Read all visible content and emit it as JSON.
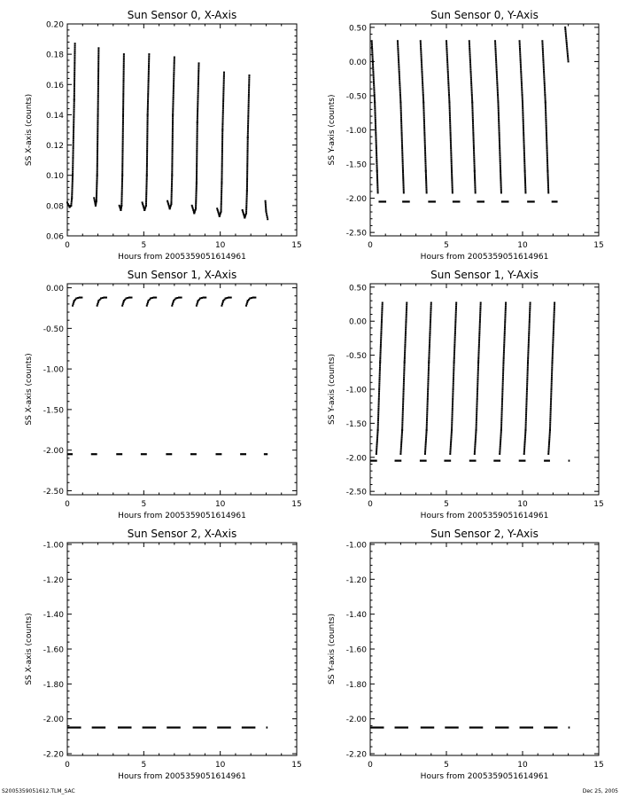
{
  "footer": {
    "left": "S2005359051612.TLM_SAC",
    "right": "Dec 25, 2005"
  },
  "chart_data": [
    {
      "type": "scatter",
      "title": "Sun Sensor 0, X-Axis",
      "xlabel": "Hours from 2005359051614961",
      "ylabel": "SS X-axis (counts)",
      "xlim": [
        0,
        15
      ],
      "ylim": [
        0.06,
        0.2
      ],
      "x_ticks": [
        0,
        5,
        10,
        15
      ],
      "x_tick_labels": [
        "0",
        "5",
        "10",
        "15"
      ],
      "y_ticks": [
        0.06,
        0.08,
        0.1,
        0.12,
        0.14,
        0.16,
        0.18,
        0.2
      ],
      "y_tick_labels": [
        "0.06",
        "0.08",
        "0.10",
        "0.12",
        "0.14",
        "0.16",
        "0.18",
        "0.20"
      ],
      "grid": false,
      "series": [
        {
          "kind": "orbit_segments",
          "segments": [
            {
              "x": [
                0.0,
                0.15,
                0.25,
                0.3,
                0.35,
                0.45,
                0.5
              ],
              "y": [
                0.082,
                0.079,
                0.08,
                0.085,
                0.1,
                0.15,
                0.187
              ]
            },
            {
              "x": [
                1.75,
                1.85,
                1.9,
                1.95,
                2.0,
                2.05
              ],
              "y": [
                0.085,
                0.08,
                0.083,
                0.1,
                0.14,
                0.184
              ]
            },
            {
              "x": [
                3.4,
                3.5,
                3.55,
                3.6,
                3.65,
                3.7
              ],
              "y": [
                0.08,
                0.077,
                0.08,
                0.1,
                0.14,
                0.18
              ]
            },
            {
              "x": [
                4.9,
                5.05,
                5.15,
                5.2,
                5.25,
                5.35
              ],
              "y": [
                0.082,
                0.077,
                0.08,
                0.1,
                0.14,
                0.18
              ]
            },
            {
              "x": [
                6.55,
                6.7,
                6.8,
                6.85,
                6.9,
                7.0
              ],
              "y": [
                0.083,
                0.078,
                0.081,
                0.1,
                0.14,
                0.178
              ]
            },
            {
              "x": [
                8.15,
                8.3,
                8.4,
                8.45,
                8.5,
                8.6
              ],
              "y": [
                0.08,
                0.075,
                0.078,
                0.095,
                0.135,
                0.174
              ]
            },
            {
              "x": [
                9.8,
                9.95,
                10.05,
                10.1,
                10.15,
                10.25
              ],
              "y": [
                0.078,
                0.073,
                0.076,
                0.095,
                0.13,
                0.168
              ]
            },
            {
              "x": [
                11.45,
                11.6,
                11.7,
                11.75,
                11.8,
                11.9
              ],
              "y": [
                0.077,
                0.072,
                0.075,
                0.09,
                0.125,
                0.166
              ]
            },
            {
              "x": [
                12.95,
                13.0,
                13.1
              ],
              "y": [
                0.083,
                0.076,
                0.071
              ]
            }
          ]
        }
      ]
    },
    {
      "type": "scatter",
      "title": "Sun Sensor 0, Y-Axis",
      "xlabel": "Hours from 2005359051614961",
      "ylabel": "SS Y-axis (counts)",
      "xlim": [
        0,
        15
      ],
      "ylim": [
        -2.55,
        0.55
      ],
      "x_ticks": [
        0,
        5,
        10,
        15
      ],
      "x_tick_labels": [
        "0",
        "5",
        "10",
        "15"
      ],
      "y_ticks": [
        -2.5,
        -2.0,
        -1.5,
        -1.0,
        -0.5,
        0.0,
        0.5
      ],
      "y_tick_labels": [
        "-2.50",
        "-2.00",
        "-1.50",
        "-1.00",
        "-0.50",
        "0.00",
        "0.50"
      ],
      "grid": false,
      "series": [
        {
          "kind": "orbit_segments",
          "segments": [
            {
              "x": [
                0.1,
                0.3,
                0.45,
                0.5
              ],
              "y": [
                0.3,
                -0.6,
                -1.6,
                -1.92
              ]
            },
            {
              "x": [
                1.8,
                2.0,
                2.15,
                2.2
              ],
              "y": [
                0.3,
                -0.6,
                -1.6,
                -1.92
              ]
            },
            {
              "x": [
                3.3,
                3.5,
                3.65,
                3.7
              ],
              "y": [
                0.3,
                -0.6,
                -1.6,
                -1.92
              ]
            },
            {
              "x": [
                5.0,
                5.2,
                5.35,
                5.4
              ],
              "y": [
                0.3,
                -0.6,
                -1.6,
                -1.92
              ]
            },
            {
              "x": [
                6.5,
                6.7,
                6.85,
                6.9
              ],
              "y": [
                0.3,
                -0.6,
                -1.6,
                -1.92
              ]
            },
            {
              "x": [
                8.2,
                8.4,
                8.55,
                8.6
              ],
              "y": [
                0.3,
                -0.6,
                -1.6,
                -1.92
              ]
            },
            {
              "x": [
                9.8,
                10.0,
                10.15,
                10.2
              ],
              "y": [
                0.3,
                -0.6,
                -1.6,
                -1.92
              ]
            },
            {
              "x": [
                11.3,
                11.5,
                11.65,
                11.7
              ],
              "y": [
                0.3,
                -0.6,
                -1.6,
                -1.92
              ]
            },
            {
              "x": [
                12.8,
                13.0
              ],
              "y": [
                0.5,
                0.0
              ]
            }
          ]
        },
        {
          "kind": "flat_segments",
          "y": -2.05,
          "segments": [
            [
              0.55,
              1.05
            ],
            [
              2.1,
              2.6
            ],
            [
              3.8,
              4.3
            ],
            [
              5.4,
              5.9
            ],
            [
              7.0,
              7.5
            ],
            [
              8.6,
              9.1
            ],
            [
              10.3,
              10.8
            ],
            [
              11.9,
              12.3
            ]
          ]
        }
      ]
    },
    {
      "type": "scatter",
      "title": "Sun Sensor 1, X-Axis",
      "xlabel": "Hours from 2005359051614961",
      "ylabel": "SS X-axis (counts)",
      "xlim": [
        0,
        15
      ],
      "ylim": [
        -2.55,
        0.05
      ],
      "x_ticks": [
        0,
        5,
        10,
        15
      ],
      "x_tick_labels": [
        "0",
        "5",
        "10",
        "15"
      ],
      "y_ticks": [
        -2.5,
        -2.0,
        -1.5,
        -1.0,
        -0.5,
        0.0
      ],
      "y_tick_labels": [
        "-2.50",
        "-2.00",
        "-1.50",
        "-1.00",
        "-0.50",
        "0.00"
      ],
      "grid": false,
      "series": [
        {
          "kind": "orbit_segments",
          "segments": [
            {
              "x": [
                0.35,
                0.45,
                0.6,
                0.8,
                0.95
              ],
              "y": [
                -0.22,
                -0.16,
                -0.13,
                -0.12,
                -0.12
              ]
            },
            {
              "x": [
                1.95,
                2.05,
                2.2,
                2.4,
                2.55
              ],
              "y": [
                -0.22,
                -0.16,
                -0.13,
                -0.12,
                -0.12
              ]
            },
            {
              "x": [
                3.6,
                3.7,
                3.85,
                4.05,
                4.2
              ],
              "y": [
                -0.22,
                -0.16,
                -0.13,
                -0.12,
                -0.12
              ]
            },
            {
              "x": [
                5.2,
                5.3,
                5.45,
                5.65,
                5.8
              ],
              "y": [
                -0.22,
                -0.16,
                -0.13,
                -0.12,
                -0.12
              ]
            },
            {
              "x": [
                6.85,
                6.95,
                7.1,
                7.3,
                7.45
              ],
              "y": [
                -0.22,
                -0.16,
                -0.13,
                -0.12,
                -0.12
              ]
            },
            {
              "x": [
                8.45,
                8.55,
                8.7,
                8.9,
                9.05
              ],
              "y": [
                -0.22,
                -0.16,
                -0.13,
                -0.12,
                -0.12
              ]
            },
            {
              "x": [
                10.1,
                10.2,
                10.35,
                10.55,
                10.7
              ],
              "y": [
                -0.22,
                -0.16,
                -0.13,
                -0.12,
                -0.12
              ]
            },
            {
              "x": [
                11.7,
                11.8,
                11.95,
                12.15,
                12.3
              ],
              "y": [
                -0.22,
                -0.16,
                -0.13,
                -0.12,
                -0.12
              ]
            }
          ]
        },
        {
          "kind": "flat_segments",
          "y": -2.05,
          "segments": [
            [
              0.0,
              0.35
            ],
            [
              1.55,
              1.95
            ],
            [
              3.2,
              3.6
            ],
            [
              4.8,
              5.2
            ],
            [
              6.45,
              6.85
            ],
            [
              8.05,
              8.45
            ],
            [
              9.7,
              10.1
            ],
            [
              11.3,
              11.7
            ],
            [
              12.85,
              13.1
            ]
          ]
        }
      ]
    },
    {
      "type": "scatter",
      "title": "Sun Sensor 1, Y-Axis",
      "xlabel": "Hours from 2005359051614961",
      "ylabel": "SS Y-axis (counts)",
      "xlim": [
        0,
        15
      ],
      "ylim": [
        -2.55,
        0.55
      ],
      "x_ticks": [
        0,
        5,
        10,
        15
      ],
      "x_tick_labels": [
        "0",
        "5",
        "10",
        "15"
      ],
      "y_ticks": [
        -2.5,
        -2.0,
        -1.5,
        -1.0,
        -0.5,
        0.0,
        0.5
      ],
      "y_tick_labels": [
        "-2.50",
        "-2.00",
        "-1.50",
        "-1.00",
        "-0.50",
        "0.00",
        "0.50"
      ],
      "grid": false,
      "series": [
        {
          "kind": "orbit_segments",
          "segments": [
            {
              "x": [
                0.4,
                0.5,
                0.65,
                0.8
              ],
              "y": [
                -1.95,
                -1.6,
                -0.6,
                0.27
              ]
            },
            {
              "x": [
                2.0,
                2.1,
                2.25,
                2.4
              ],
              "y": [
                -1.95,
                -1.6,
                -0.6,
                0.27
              ]
            },
            {
              "x": [
                3.6,
                3.7,
                3.85,
                4.0
              ],
              "y": [
                -1.95,
                -1.6,
                -0.6,
                0.27
              ]
            },
            {
              "x": [
                5.25,
                5.35,
                5.5,
                5.65
              ],
              "y": [
                -1.95,
                -1.6,
                -0.6,
                0.27
              ]
            },
            {
              "x": [
                6.85,
                6.95,
                7.1,
                7.25
              ],
              "y": [
                -1.95,
                -1.6,
                -0.6,
                0.27
              ]
            },
            {
              "x": [
                8.5,
                8.6,
                8.75,
                8.9
              ],
              "y": [
                -1.95,
                -1.6,
                -0.6,
                0.27
              ]
            },
            {
              "x": [
                10.1,
                10.2,
                10.35,
                10.5
              ],
              "y": [
                -1.95,
                -1.6,
                -0.6,
                0.27
              ]
            },
            {
              "x": [
                11.7,
                11.8,
                11.95,
                12.1
              ],
              "y": [
                -1.95,
                -1.6,
                -0.6,
                0.27
              ]
            }
          ]
        },
        {
          "kind": "flat_segments",
          "y": -2.05,
          "segments": [
            [
              0.0,
              0.45
            ],
            [
              1.6,
              2.05
            ],
            [
              3.25,
              3.7
            ],
            [
              4.85,
              5.3
            ],
            [
              6.5,
              6.95
            ],
            [
              8.1,
              8.55
            ],
            [
              9.75,
              10.2
            ],
            [
              11.4,
              11.8
            ],
            [
              13.0,
              13.1
            ]
          ]
        }
      ]
    },
    {
      "type": "scatter",
      "title": "Sun Sensor 2, X-Axis",
      "xlabel": "Hours from 2005359051614961",
      "ylabel": "SS X-axis (counts)",
      "xlim": [
        0,
        15
      ],
      "ylim": [
        -2.21,
        -0.99
      ],
      "x_ticks": [
        0,
        5,
        10,
        15
      ],
      "x_tick_labels": [
        "0",
        "5",
        "10",
        "15"
      ],
      "y_ticks": [
        -2.2,
        -2.0,
        -1.8,
        -1.6,
        -1.4,
        -1.2,
        -1.0
      ],
      "y_tick_labels": [
        "-2.20",
        "-2.00",
        "-1.80",
        "-1.60",
        "-1.40",
        "-1.20",
        "-1.00"
      ],
      "grid": false,
      "series": [
        {
          "kind": "flat_segments",
          "y": -2.05,
          "segments": [
            [
              0.0,
              0.9
            ],
            [
              1.6,
              2.5
            ],
            [
              3.3,
              4.2
            ],
            [
              4.9,
              5.8
            ],
            [
              6.5,
              7.4
            ],
            [
              8.2,
              9.1
            ],
            [
              9.8,
              10.7
            ],
            [
              11.4,
              12.3
            ],
            [
              13.0,
              13.1
            ]
          ]
        }
      ]
    },
    {
      "type": "scatter",
      "title": "Sun Sensor 2, Y-Axis",
      "xlabel": "Hours from 2005359051614961",
      "ylabel": "SS Y-axis (counts)",
      "xlim": [
        0,
        15
      ],
      "ylim": [
        -2.21,
        -0.99
      ],
      "x_ticks": [
        0,
        5,
        10,
        15
      ],
      "x_tick_labels": [
        "0",
        "5",
        "10",
        "15"
      ],
      "y_ticks": [
        -2.2,
        -2.0,
        -1.8,
        -1.6,
        -1.4,
        -1.2,
        -1.0
      ],
      "y_tick_labels": [
        "-2.20",
        "-2.00",
        "-1.80",
        "-1.60",
        "-1.40",
        "-1.20",
        "-1.00"
      ],
      "grid": false,
      "series": [
        {
          "kind": "flat_segments",
          "y": -2.05,
          "segments": [
            [
              0.0,
              0.9
            ],
            [
              1.6,
              2.5
            ],
            [
              3.3,
              4.2
            ],
            [
              4.9,
              5.8
            ],
            [
              6.5,
              7.4
            ],
            [
              8.2,
              9.1
            ],
            [
              9.8,
              10.7
            ],
            [
              11.4,
              12.3
            ],
            [
              13.0,
              13.1
            ]
          ]
        }
      ]
    }
  ]
}
